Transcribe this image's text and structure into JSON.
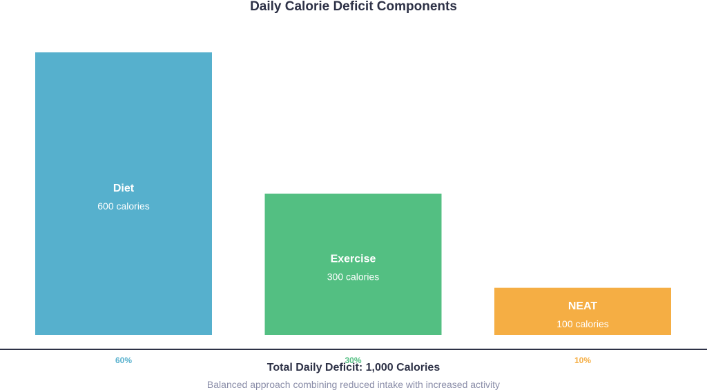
{
  "colors": {
    "diet": "#56b0cd",
    "exercise": "#53bf82",
    "neat": "#f5ae44",
    "baseline": "#2d3146",
    "title": "#2d3146",
    "subtitle": "#8a8da8",
    "bar_text": "#ffffff"
  },
  "chart_data": {
    "type": "bar",
    "title": "Daily Calorie Deficit Components",
    "categories": [
      "Diet",
      "Exercise",
      "NEAT"
    ],
    "values": [
      600,
      300,
      100
    ],
    "value_labels": [
      "600 calories",
      "300 calories",
      "100 calories"
    ],
    "percent_labels": [
      "60%",
      "30%",
      "10%"
    ],
    "ylim": [
      0,
      600
    ],
    "grid": false,
    "legend": "none",
    "total_label": "Total Daily Deficit: 1,000 Calories",
    "footnote": "Balanced approach combining reduced intake with increased activity"
  }
}
